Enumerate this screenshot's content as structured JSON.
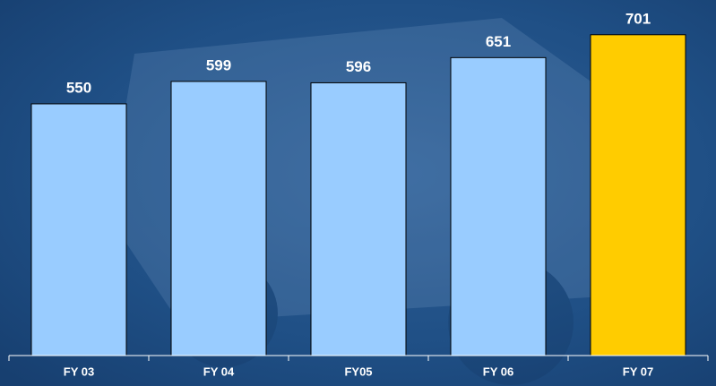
{
  "chart_data": {
    "type": "bar",
    "categories": [
      "FY 03",
      "FY 04",
      "FY05",
      "FY 06",
      "FY 07"
    ],
    "values": [
      550,
      599,
      596,
      651,
      701
    ],
    "colors": [
      "#99ccff",
      "#99ccff",
      "#99ccff",
      "#99ccff",
      "#ffcc00"
    ]
  }
}
